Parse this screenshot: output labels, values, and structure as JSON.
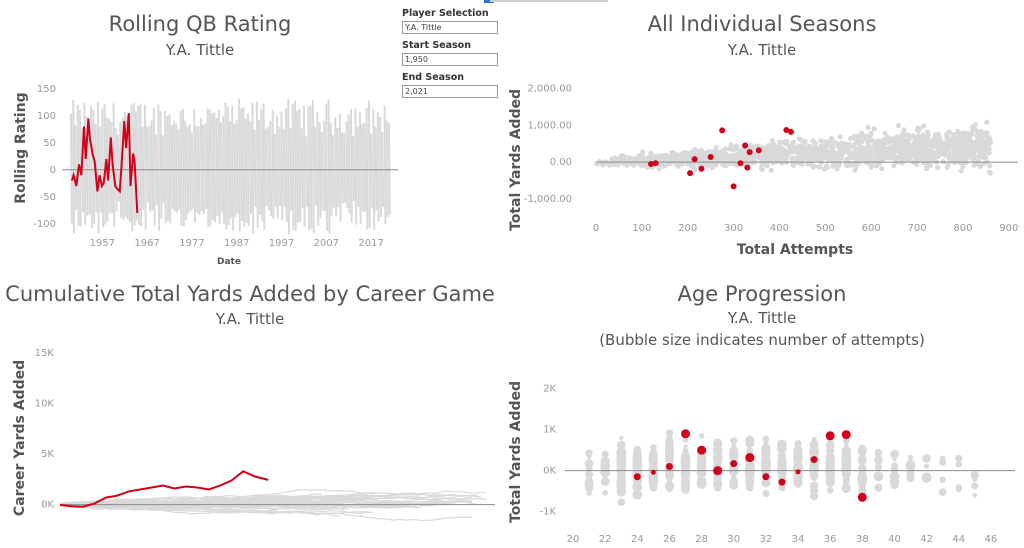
{
  "controls": {
    "player_label": "Player Selection",
    "player_value": "Y.A. Tittle",
    "start_label": "Start Season",
    "start_value": "1,950",
    "end_label": "End Season",
    "end_value": "2,021"
  },
  "colors": {
    "highlight": "#d0021b",
    "background_series": "#d9d9d9",
    "zero_line": "#8c8c8c",
    "axis_text": "#999999"
  },
  "chart_data": [
    {
      "id": "rolling",
      "type": "line",
      "title": "Rolling QB Rating",
      "subtitle": "Y.A. Tittle",
      "xlabel": "Date",
      "ylabel": "Rolling Rating",
      "x_ticks": [
        "1957",
        "1967",
        "1977",
        "1987",
        "1997",
        "2007",
        "2017"
      ],
      "y_ticks": [
        150,
        100,
        50,
        0,
        -50,
        -100
      ],
      "xlim": [
        1948,
        2023
      ],
      "ylim": [
        -130,
        170
      ],
      "highlight_series": {
        "name": "Y.A. Tittle",
        "x": [
          1950.2,
          1950.6,
          1951.2,
          1951.8,
          1952.3,
          1952.9,
          1953.3,
          1953.9,
          1954.2,
          1954.8,
          1955.3,
          1955.9,
          1956.4,
          1956.9,
          1957.3,
          1957.9,
          1958.3,
          1958.9,
          1959.3,
          1959.9,
          1960.3,
          1960.9,
          1961.3,
          1961.9,
          1962.3,
          1962.9,
          1963.3,
          1963.9,
          1964.2,
          1964.8
        ],
        "y": [
          -20,
          -10,
          -30,
          10,
          -10,
          80,
          20,
          95,
          60,
          30,
          15,
          -40,
          -10,
          -30,
          -25,
          20,
          -20,
          60,
          10,
          -30,
          -35,
          -40,
          10,
          90,
          40,
          105,
          -30,
          30,
          15,
          -80
        ]
      }
    },
    {
      "id": "seasons",
      "type": "scatter",
      "title": "All Individual Seasons",
      "subtitle": "Y.A. Tittle",
      "xlabel": "Total Attempts",
      "ylabel": "Total Yards Added",
      "x_ticks": [
        "0",
        "100",
        "200",
        "300",
        "400",
        "500",
        "600",
        "700",
        "800",
        "900"
      ],
      "y_ticks": [
        "2,000.00",
        "1,000.00",
        "0.00",
        "-1,000.00"
      ],
      "xlim": [
        0,
        920
      ],
      "ylim": [
        -1300,
        2500
      ],
      "highlight_points": [
        [
          120,
          -50
        ],
        [
          130,
          -30
        ],
        [
          205,
          -300
        ],
        [
          215,
          80
        ],
        [
          230,
          -180
        ],
        [
          250,
          140
        ],
        [
          275,
          860
        ],
        [
          300,
          -660
        ],
        [
          315,
          -30
        ],
        [
          325,
          450
        ],
        [
          330,
          -150
        ],
        [
          335,
          270
        ],
        [
          355,
          320
        ],
        [
          415,
          870
        ],
        [
          425,
          820
        ]
      ]
    },
    {
      "id": "cumulative",
      "type": "line",
      "title": "Cumulative Total Yards Added by Career Game",
      "subtitle": "Y.A. Tittle",
      "xlabel": "",
      "ylabel": "Career Yards Added",
      "y_ticks": [
        "15K",
        "10K",
        "5K",
        "0K"
      ],
      "ylim": [
        -3500,
        17000
      ],
      "xlim": [
        0,
        380
      ],
      "highlight_series": {
        "name": "Y.A. Tittle",
        "x": [
          0,
          10,
          20,
          30,
          40,
          50,
          60,
          70,
          80,
          90,
          100,
          110,
          120,
          130,
          140,
          150,
          160,
          170,
          180,
          182
        ],
        "y": [
          0,
          -150,
          -200,
          100,
          700,
          900,
          1300,
          1500,
          1700,
          1900,
          1600,
          1800,
          1700,
          1500,
          1900,
          2400,
          3300,
          2800,
          2500,
          2450
        ]
      }
    },
    {
      "id": "age",
      "type": "scatter",
      "title": "Age Progression",
      "subtitle": "Y.A. Tittle",
      "subtitle2": "(Bubble size indicates number of attempts)",
      "xlabel": "",
      "ylabel": "Total Yards Added",
      "x_ticks": [
        "20",
        "22",
        "24",
        "26",
        "28",
        "30",
        "32",
        "34",
        "36",
        "38",
        "40",
        "42",
        "44",
        "46"
      ],
      "y_ticks": [
        "2K",
        "1K",
        "0K",
        "-1K"
      ],
      "xlim": [
        19.5,
        47.5
      ],
      "ylim": [
        -1400,
        2700
      ],
      "highlight_points": [
        [
          24,
          -150,
          4
        ],
        [
          25,
          -40,
          3
        ],
        [
          26,
          100,
          4
        ],
        [
          27,
          900,
          5
        ],
        [
          28,
          500,
          5
        ],
        [
          29,
          0,
          5
        ],
        [
          30,
          170,
          4
        ],
        [
          31,
          320,
          5
        ],
        [
          32,
          -150,
          4
        ],
        [
          33,
          -280,
          4
        ],
        [
          34,
          -30,
          3
        ],
        [
          35,
          270,
          4
        ],
        [
          36,
          850,
          5
        ],
        [
          37,
          880,
          5
        ],
        [
          38,
          -650,
          5
        ]
      ]
    }
  ]
}
